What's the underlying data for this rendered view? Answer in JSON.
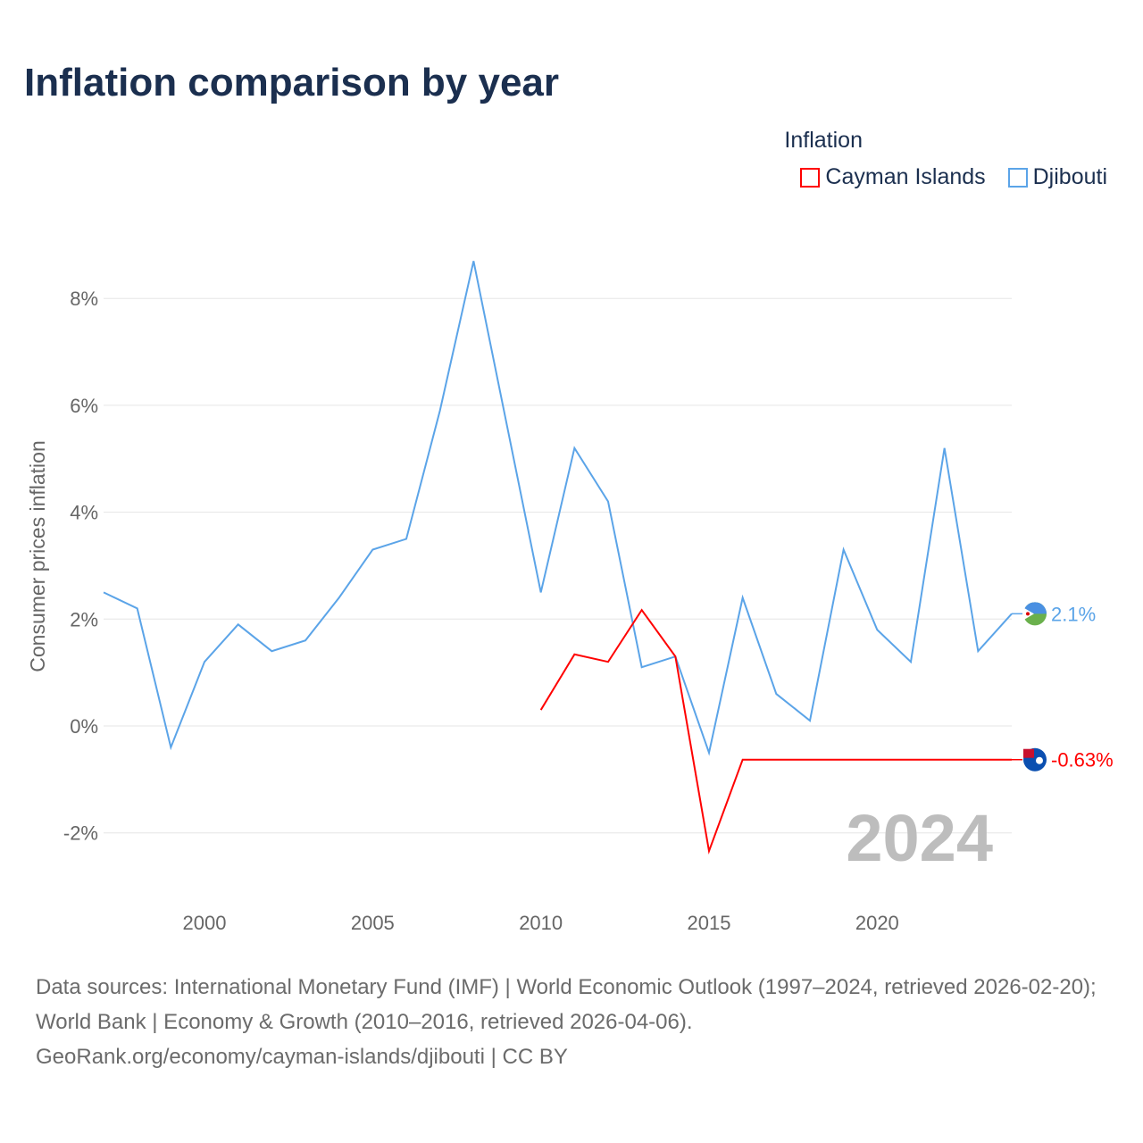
{
  "title": "Inflation comparison by year",
  "legend": {
    "title": "Inflation",
    "items": [
      {
        "label": "Cayman Islands",
        "color": "#ff0000"
      },
      {
        "label": "Djibouti",
        "color": "#5ba4e8"
      }
    ]
  },
  "chart_data": {
    "type": "line",
    "ylabel": "Consumer prices inflation",
    "xlabel": "",
    "xlim": [
      1997,
      2024
    ],
    "ylim": [
      -3,
      9
    ],
    "x_ticks": [
      2000,
      2005,
      2010,
      2015,
      2020
    ],
    "y_ticks": [
      -2,
      0,
      2,
      4,
      6,
      8
    ],
    "y_tick_labels": [
      "-2%",
      "0%",
      "2%",
      "4%",
      "6%",
      "8%"
    ],
    "grid": true,
    "year_watermark": "2024",
    "series": [
      {
        "name": "Djibouti",
        "color": "#5ba4e8",
        "end_label": "2.1%",
        "x": [
          1997,
          1998,
          1999,
          2000,
          2001,
          2002,
          2003,
          2004,
          2005,
          2006,
          2007,
          2008,
          2009,
          2010,
          2011,
          2012,
          2013,
          2014,
          2015,
          2016,
          2017,
          2018,
          2019,
          2020,
          2021,
          2022,
          2023,
          2024
        ],
        "values": [
          2.5,
          2.2,
          -0.4,
          1.2,
          1.9,
          1.4,
          1.6,
          2.4,
          3.3,
          3.5,
          5.9,
          8.7,
          5.6,
          2.5,
          5.2,
          4.2,
          1.1,
          1.3,
          -0.5,
          2.4,
          0.6,
          0.1,
          3.3,
          1.8,
          1.2,
          5.2,
          1.4,
          2.1
        ]
      },
      {
        "name": "Cayman Islands",
        "color": "#ff0000",
        "end_label": "-0.63%",
        "x": [
          2010,
          2011,
          2012,
          2013,
          2014,
          2015,
          2016,
          2024
        ],
        "values": [
          0.3,
          1.34,
          1.2,
          2.17,
          1.3,
          -2.34,
          -0.63,
          -0.63
        ]
      }
    ]
  },
  "source": {
    "line1": "Data sources: International Monetary Fund (IMF) | World Economic Outlook (1997–2024, retrieved 2026-02-20); World Bank | Economy & Growth (2010–2016, retrieved 2026-04-06).",
    "line2": "GeoRank.org/economy/cayman-islands/djibouti | CC BY"
  }
}
